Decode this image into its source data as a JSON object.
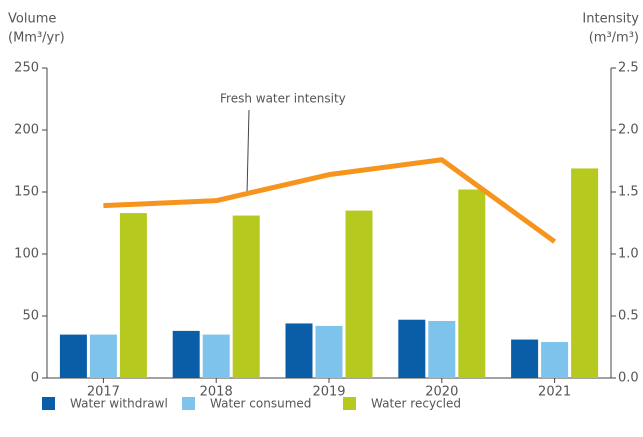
{
  "chart_data": {
    "type": "bar",
    "y_label": [
      "Volume",
      "(Mm³/yr)"
    ],
    "y2_label": [
      "Intensity",
      "(m³/m³)"
    ],
    "categories": [
      "2017",
      "2018",
      "2019",
      "2020",
      "2021"
    ],
    "series": [
      {
        "name": "Water withdrawl",
        "color": "#0a5ea8",
        "values": [
          35,
          38,
          44,
          47,
          31
        ]
      },
      {
        "name": "Water consumed",
        "color": "#7dc3eb",
        "values": [
          35,
          35,
          42,
          46,
          29
        ]
      },
      {
        "name": "Water recycled",
        "color": "#b5c91e",
        "values": [
          133,
          131,
          135,
          152,
          169
        ]
      },
      {
        "name": "Fresh water intensity",
        "type": "line",
        "axis": "y2",
        "color": "#f7941d",
        "values": [
          1.39,
          1.43,
          1.64,
          1.76,
          1.1
        ]
      }
    ],
    "ylim": [
      0,
      250
    ],
    "yticks": [
      0,
      50,
      100,
      150,
      200,
      250
    ],
    "y2lim": [
      0,
      2.5
    ],
    "y2ticks": [
      {
        "value": 0,
        "label": "0.0"
      },
      0.5,
      {
        "value": 1,
        "label": "1.0"
      },
      1.5,
      {
        "value": 2,
        "label": "2.0"
      },
      2.5
    ],
    "legend": "bottom",
    "grid": false
  }
}
